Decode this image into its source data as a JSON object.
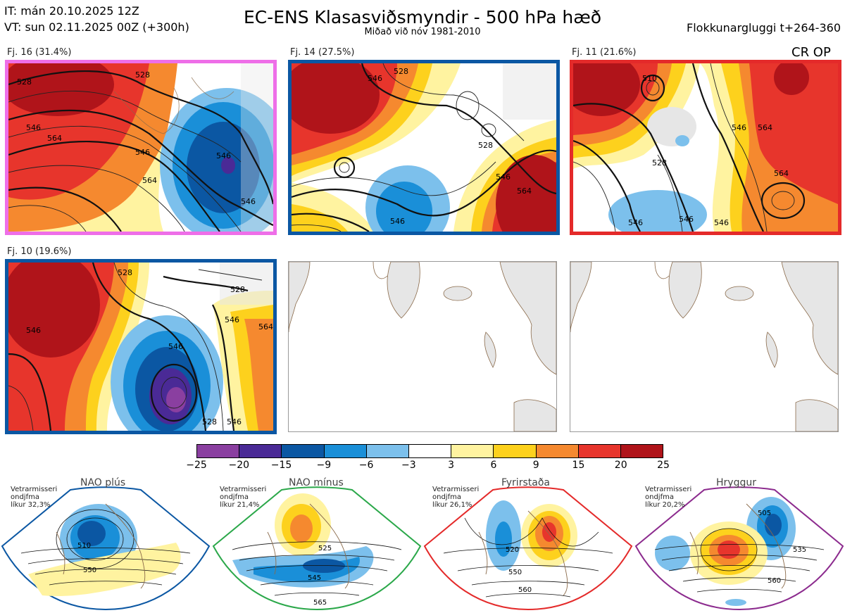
{
  "header": {
    "it_line": "IT: mán 20.10.2025 12Z",
    "vt_line": "VT: sun 02.11.2025 00Z  (+300h)",
    "title": "EC-ENS Klasasviðsmyndir - 500 hPa hæð",
    "subtitle": "Miðað við nóv 1981-2010",
    "window": "Flokkunargluggi t+264-360"
  },
  "panels": [
    {
      "label": "Fj. 16 (31.4%)",
      "border": "#ee6ee8",
      "contours": [
        "528",
        "546",
        "564",
        "546",
        "528",
        "546",
        "564",
        "546"
      ]
    },
    {
      "label": "Fj. 14 (27.5%)",
      "border": "#0b57a3",
      "contours": [
        "546",
        "528",
        "528",
        "546",
        "564",
        "546"
      ]
    },
    {
      "label": "Fj. 11 (21.6%)",
      "border": "#e42a2a",
      "contours": [
        "510",
        "528",
        "546",
        "564",
        "546",
        "564",
        "546",
        "546"
      ]
    },
    {
      "label": "Fj. 10 (19.6%)",
      "border": "#0b57a3",
      "contours": [
        "528",
        "546",
        "528",
        "546",
        "564",
        "546",
        "528",
        "546"
      ]
    }
  ],
  "cr_op": "CR OP",
  "colorbar": {
    "ticks": [
      "−25",
      "−20",
      "−15",
      "−9",
      "−6",
      "−3",
      "3",
      "6",
      "9",
      "15",
      "20",
      "25"
    ],
    "colors": [
      "#8a3fa0",
      "#4a2a96",
      "#0b57a3",
      "#1a8fd8",
      "#7cc0ec",
      "#ffffff",
      "#fff3a0",
      "#fdd11d",
      "#f5892f",
      "#e7352c",
      "#b0141a"
    ]
  },
  "regimes": [
    {
      "title": "NAO plús",
      "stat1": "Vetrarmisseri",
      "stat2": "ondjfma",
      "stat3": "líkur 32,3%",
      "color": "#0b57a3",
      "contours": [
        "510",
        "550"
      ]
    },
    {
      "title": "NAO mínus",
      "stat1": "Vetrarmisseri",
      "stat2": "ondjfma",
      "stat3": "líkur 21,4%",
      "color": "#2ba84a",
      "contours": [
        "525",
        "545",
        "565"
      ]
    },
    {
      "title": "Fyrirstaða",
      "stat1": "Vetrarmisseri",
      "stat2": "ondjfma",
      "stat3": "líkur 26,1%",
      "color": "#e42a2a",
      "contours": [
        "520",
        "550",
        "560"
      ]
    },
    {
      "title": "Hryggur",
      "stat1": "Vetrarmisseri",
      "stat2": "ondjfma",
      "stat3": "líkur 20,2%",
      "color": "#8c2b8e",
      "contours": [
        "505",
        "535",
        "560"
      ]
    }
  ]
}
